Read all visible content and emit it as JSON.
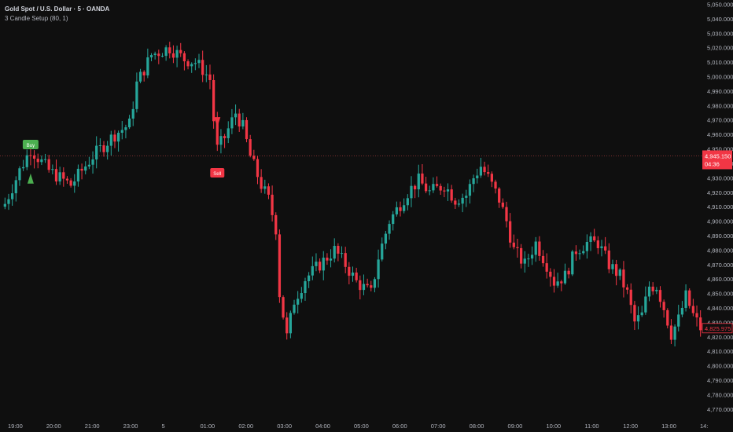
{
  "header": {
    "symbol_title": "Gold Spot / U.S. Dollar · 5 · OANDA",
    "indicator_label": "3 Candle Setup (80, 1)"
  },
  "colors": {
    "background": "#0f0f0f",
    "up": "#26a69a",
    "down": "#f23645",
    "axis_text": "#b2b5be",
    "price_line": "#a13a3a",
    "buy_signal": "#4caf50",
    "sell_signal": "#f23645"
  },
  "price_axis": {
    "ticks": [
      "5,050.000",
      "5,040.000",
      "5,030.000",
      "5,020.000",
      "5,010.000",
      "5,000.000",
      "4,990.000",
      "4,980.000",
      "4,970.000",
      "4,960.000",
      "4,950.000",
      "4,940.000",
      "4,930.000",
      "4,920.000",
      "4,910.000",
      "4,900.000",
      "4,890.000",
      "4,880.000",
      "4,870.000",
      "4,860.000",
      "4,850.000",
      "4,840.000",
      "4,830.000",
      "4,820.000",
      "4,810.000",
      "4,800.000",
      "4,790.000",
      "4,780.000",
      "4,770.000"
    ],
    "current_price_label": "4,945.150",
    "countdown_label": "04:36",
    "secondary_price_label": "4,825.975"
  },
  "time_axis": {
    "ticks": [
      "19:00",
      "20:00",
      "21:00",
      "23:00",
      "5",
      "01:00",
      "02:00",
      "03:00",
      "04:00",
      "05:00",
      "06:00",
      "07:00",
      "08:00",
      "09:00",
      "10:00",
      "11:00",
      "12:00",
      "13:00",
      "14:"
    ]
  },
  "signals": {
    "buy_label": "Buy",
    "sell_label": "Sell"
  },
  "chart_data": {
    "type": "candlestick",
    "ylim": [
      4765,
      5053
    ],
    "current_price": 4945.15,
    "secondary_price": 4825.975,
    "x_ticks": [
      "19:00",
      "20:00",
      "21:00",
      "23:00",
      "5",
      "01:00",
      "02:00",
      "03:00",
      "04:00",
      "05:00",
      "06:00",
      "07:00",
      "08:00",
      "09:00",
      "10:00",
      "11:00",
      "12:00",
      "13:00",
      "14:"
    ],
    "close_keypoints": [
      {
        "t": 0,
        "price": 4912
      },
      {
        "t": 4,
        "price": 4935
      },
      {
        "t": 7,
        "price": 4950
      },
      {
        "t": 12,
        "price": 4935
      },
      {
        "t": 18,
        "price": 4925
      },
      {
        "t": 24,
        "price": 4945
      },
      {
        "t": 30,
        "price": 4960
      },
      {
        "t": 34,
        "price": 4967
      },
      {
        "t": 36,
        "price": 4995
      },
      {
        "t": 40,
        "price": 5015
      },
      {
        "t": 45,
        "price": 5020
      },
      {
        "t": 49,
        "price": 5012
      },
      {
        "t": 52,
        "price": 5010
      },
      {
        "t": 54,
        "price": 5005
      },
      {
        "t": 56,
        "price": 4998
      },
      {
        "t": 57,
        "price": 4970
      },
      {
        "t": 58,
        "price": 4950
      },
      {
        "t": 60,
        "price": 4958
      },
      {
        "t": 63,
        "price": 4975
      },
      {
        "t": 65,
        "price": 4965
      },
      {
        "t": 67,
        "price": 4945
      },
      {
        "t": 70,
        "price": 4925
      },
      {
        "t": 72,
        "price": 4915
      },
      {
        "t": 74,
        "price": 4895
      },
      {
        "t": 75,
        "price": 4850
      },
      {
        "t": 77,
        "price": 4820
      },
      {
        "t": 79,
        "price": 4845
      },
      {
        "t": 82,
        "price": 4860
      },
      {
        "t": 86,
        "price": 4870
      },
      {
        "t": 90,
        "price": 4880
      },
      {
        "t": 93,
        "price": 4870
      },
      {
        "t": 96,
        "price": 4858
      },
      {
        "t": 100,
        "price": 4850
      },
      {
        "t": 102,
        "price": 4875
      },
      {
        "t": 105,
        "price": 4900
      },
      {
        "t": 110,
        "price": 4920
      },
      {
        "t": 113,
        "price": 4928
      },
      {
        "t": 116,
        "price": 4920
      },
      {
        "t": 120,
        "price": 4925
      },
      {
        "t": 123,
        "price": 4915
      },
      {
        "t": 126,
        "price": 4918
      },
      {
        "t": 128,
        "price": 4930
      },
      {
        "t": 130,
        "price": 4938
      },
      {
        "t": 132,
        "price": 4930
      },
      {
        "t": 135,
        "price": 4915
      },
      {
        "t": 137,
        "price": 4900
      },
      {
        "t": 139,
        "price": 4880
      },
      {
        "t": 142,
        "price": 4870
      },
      {
        "t": 145,
        "price": 4885
      },
      {
        "t": 148,
        "price": 4870
      },
      {
        "t": 150,
        "price": 4858
      },
      {
        "t": 153,
        "price": 4862
      },
      {
        "t": 156,
        "price": 4880
      },
      {
        "t": 159,
        "price": 4885
      },
      {
        "t": 162,
        "price": 4885
      },
      {
        "t": 165,
        "price": 4870
      },
      {
        "t": 168,
        "price": 4862
      },
      {
        "t": 170,
        "price": 4850
      },
      {
        "t": 172,
        "price": 4830
      },
      {
        "t": 174,
        "price": 4835
      },
      {
        "t": 176,
        "price": 4855
      },
      {
        "t": 178,
        "price": 4855
      },
      {
        "t": 180,
        "price": 4840
      },
      {
        "t": 182,
        "price": 4822
      },
      {
        "t": 184,
        "price": 4832
      },
      {
        "t": 186,
        "price": 4848
      },
      {
        "t": 188,
        "price": 4835
      },
      {
        "t": 190,
        "price": 4826
      }
    ]
  }
}
